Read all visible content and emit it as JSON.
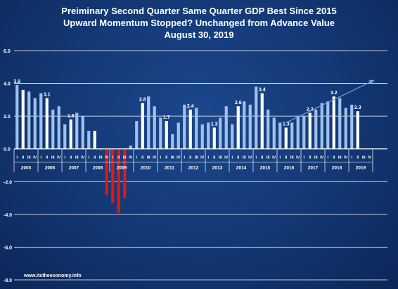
{
  "title": {
    "line1": "Preiminary Second Quarter Same Quarter GDP Best Since 2015",
    "line2": "Upward Momentum Stopped?  Unchanged from Advance Value",
    "line3": "August 30, 2019"
  },
  "source": "www.itstheeconomy.info",
  "colors": {
    "background": "#143a78",
    "bar_default": "#9fc2ec",
    "bar_q2": "#ffffff",
    "bar_negative": "#e8150f",
    "trend_arrow": "#6f9fe0",
    "grid": "#ffffff"
  },
  "chart_data": {
    "type": "bar",
    "ylim": [
      -8,
      6
    ],
    "yticks": [
      "6.0",
      "4.0",
      "2.0",
      "0.0",
      "-2.0",
      "-4.0",
      "-6.0",
      "-8.0"
    ],
    "grid": true,
    "quarter_labels": [
      "I",
      "II",
      "III",
      "IV"
    ],
    "years": [
      "2005",
      "2006",
      "2007",
      "2008",
      "2009",
      "2010",
      "2011",
      "2012",
      "2013",
      "2014",
      "2015",
      "2016",
      "2017",
      "2018",
      "2019"
    ],
    "values": [
      3.9,
      3.6,
      3.5,
      3.1,
      3.4,
      3.1,
      2.4,
      2.6,
      1.5,
      1.8,
      2.2,
      2.0,
      1.1,
      1.1,
      -0.1,
      -2.8,
      -3.3,
      -3.9,
      -3.0,
      0.2,
      1.7,
      2.8,
      3.2,
      2.6,
      1.9,
      1.7,
      0.9,
      1.6,
      2.7,
      2.4,
      2.5,
      1.5,
      1.6,
      1.3,
      1.9,
      2.6,
      1.5,
      2.6,
      2.9,
      2.7,
      3.8,
      3.4,
      2.4,
      1.9,
      1.6,
      1.3,
      1.6,
      2.0,
      2.0,
      2.2,
      2.4,
      2.8,
      2.9,
      3.2,
      3.1,
      2.5,
      2.7,
      2.3
    ],
    "data_labels": [
      {
        "index": 0,
        "text": "3.9"
      },
      {
        "index": 5,
        "text": "3.1"
      },
      {
        "index": 9,
        "text": "1.8"
      },
      {
        "index": 21,
        "text": "2.8"
      },
      {
        "index": 25,
        "text": "1.7"
      },
      {
        "index": 29,
        "text": "2.4"
      },
      {
        "index": 33,
        "text": "1.3"
      },
      {
        "index": 37,
        "text": "2.6"
      },
      {
        "index": 41,
        "text": "3.4"
      },
      {
        "index": 45,
        "text": "1.3"
      },
      {
        "index": 49,
        "text": "2.2"
      },
      {
        "index": 53,
        "text": "3.2"
      },
      {
        "index": 57,
        "text": "2.3"
      }
    ],
    "negative_quarter_range": [
      14,
      18
    ],
    "trend_arrow": {
      "from_index": 45,
      "from_value": 1.6,
      "to_index": 60,
      "to_value": 4.2
    }
  }
}
